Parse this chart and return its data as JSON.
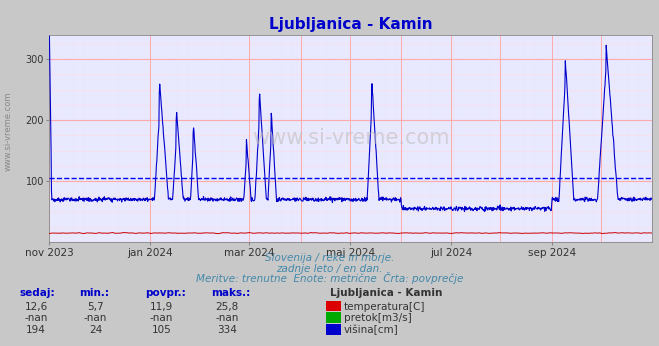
{
  "title": "Ljubljanica - Kamin",
  "title_color": "#0000cc",
  "fig_bg_color": "#c8c8c8",
  "plot_bg_color": "#e8e8ff",
  "watermark": "www.si-vreme.com",
  "watermark_color": "#aaaaaa",
  "left_text": "www.si-vreme.com",
  "subtitle_lines": [
    "Slovenija / reke in morje.",
    "zadnje leto / en dan.",
    "Meritve: trenutne  Enote: metrične  Črta: povprečje"
  ],
  "subtitle_color": "#4488aa",
  "xlabel_labels": [
    "nov 2023",
    "jan 2024",
    "mar 2024",
    "maj 2024",
    "jul 2024",
    "sep 2024"
  ],
  "xlabel_days": [
    0,
    61,
    121,
    182,
    243,
    304
  ],
  "ylim": [
    0,
    340
  ],
  "ytick_vals": [
    100,
    200,
    300
  ],
  "avg_line_value": 105,
  "avg_line_color": "#0000ff",
  "major_grid_color": "#ffaaaa",
  "minor_grid_color": "#ffdddd",
  "major_vgrid_days": [
    0,
    61,
    121,
    152,
    182,
    213,
    243,
    273,
    304,
    334,
    365
  ],
  "temp_color": "#cc0000",
  "height_color": "#0000cc",
  "legend_title": "Ljubljanica - Kamin",
  "legend_items": [
    {
      "label": "temperatura[C]",
      "color": "#dd0000"
    },
    {
      "label": "pretok[m3/s]",
      "color": "#00aa00"
    },
    {
      "label": "višina[cm]",
      "color": "#0000cc"
    }
  ],
  "table_headers": [
    "sedaj:",
    "min.:",
    "povpr.:",
    "maks.:"
  ],
  "table_rows": [
    [
      "12,6",
      "5,7",
      "11,9",
      "25,8"
    ],
    [
      "-nan",
      "-nan",
      "-nan",
      "-nan"
    ],
    [
      "194",
      "24",
      "105",
      "334"
    ]
  ],
  "total_days": 365
}
